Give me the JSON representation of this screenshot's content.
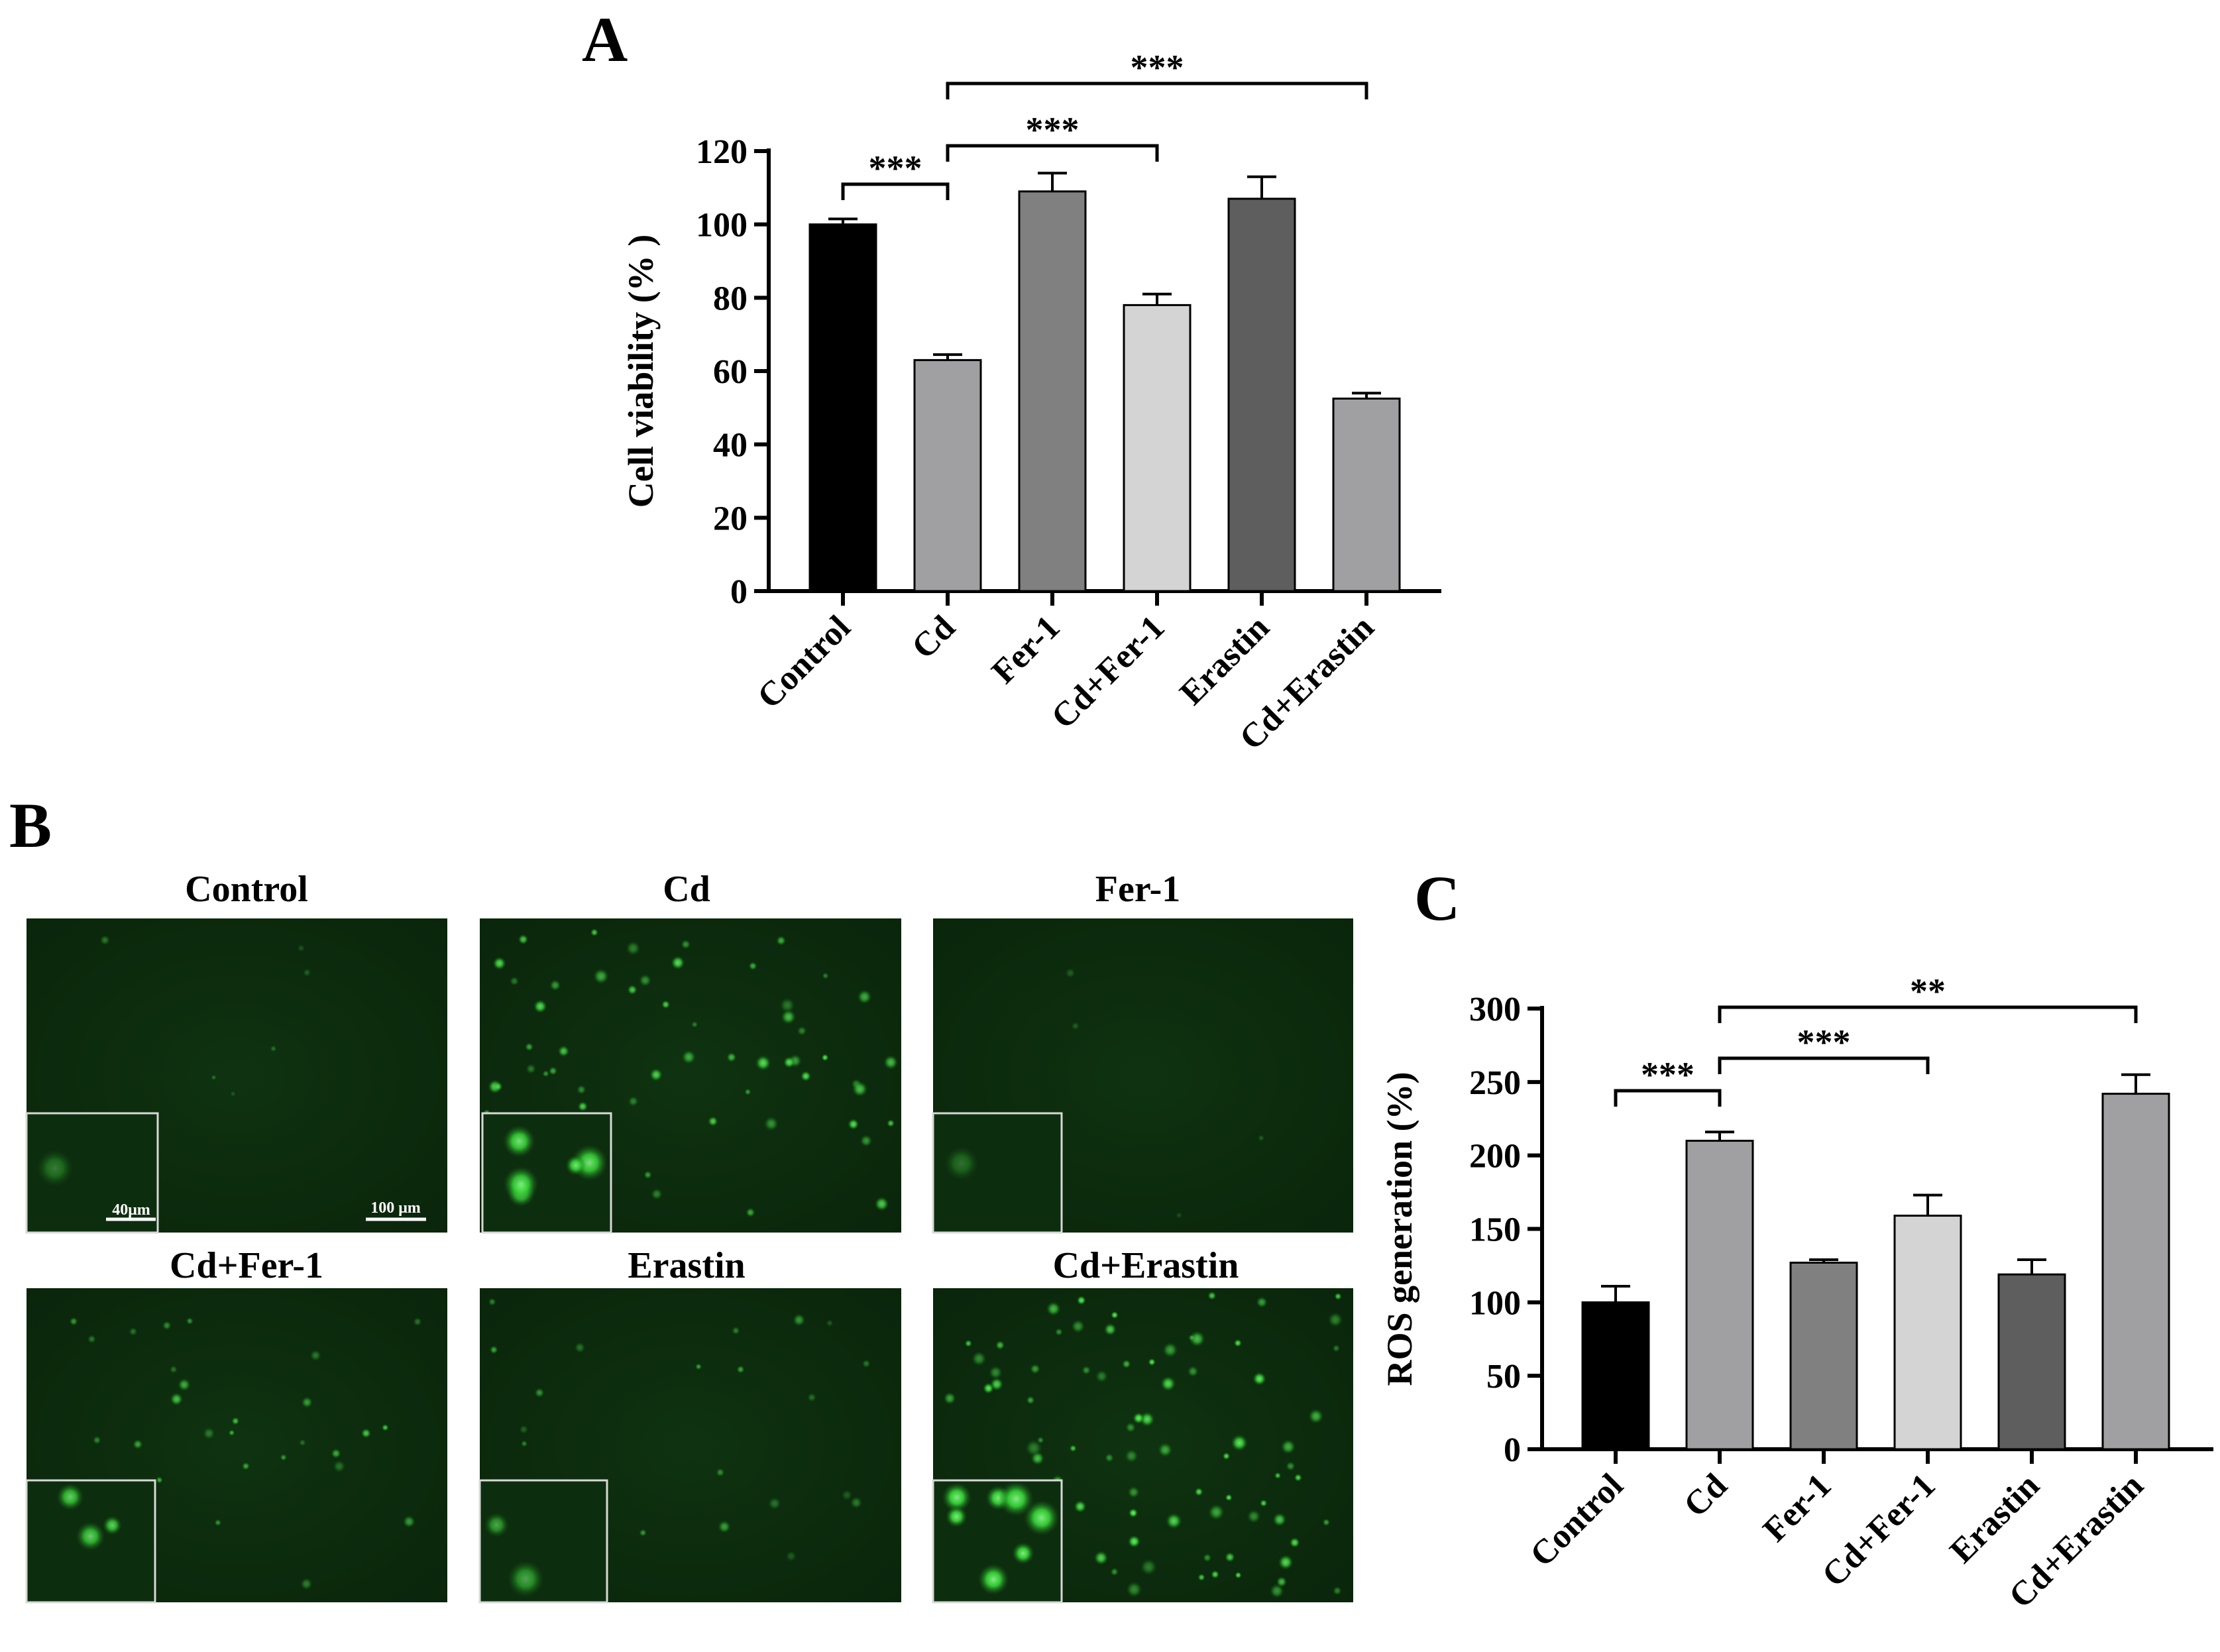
{
  "panels": {
    "a": {
      "letter": "A"
    },
    "b": {
      "letter": "B"
    },
    "c": {
      "letter": "C"
    }
  },
  "chart_data": [
    {
      "type": "bar",
      "panel": "A",
      "title": "",
      "ylabel": "Cell viability (% )",
      "xlabel": "",
      "categories": [
        "Control",
        "Cd",
        "Fer-1",
        "Cd+Fer-1",
        "Erastin",
        "Cd+Erastin"
      ],
      "values": [
        100,
        63,
        109,
        78,
        107,
        52.5
      ],
      "errors": [
        1.5,
        1.5,
        5,
        3,
        6,
        1.5
      ],
      "colors": [
        "#000000",
        "#a0a0a2",
        "#808080",
        "#d4d4d4",
        "#5e5e5e",
        "#a0a0a2"
      ],
      "ylim": [
        0,
        120
      ],
      "yticks": [
        0,
        20,
        40,
        60,
        80,
        100,
        120
      ],
      "significance": [
        {
          "from": 0,
          "to": 1,
          "label": "***"
        },
        {
          "from": 1,
          "to": 3,
          "label": "***"
        },
        {
          "from": 1,
          "to": 5,
          "label": "***"
        }
      ]
    },
    {
      "type": "bar",
      "panel": "C",
      "title": "",
      "ylabel": "ROS generation (%)",
      "xlabel": "",
      "categories": [
        "Control",
        "Cd",
        "Fer-1",
        "Cd+Fer-1",
        "Erastin",
        "Cd+Erastin"
      ],
      "values": [
        100,
        210,
        127,
        159,
        119,
        242
      ],
      "errors": [
        11,
        6,
        2,
        14,
        10,
        13
      ],
      "colors": [
        "#000000",
        "#a0a0a2",
        "#808080",
        "#d4d4d4",
        "#5e5e5e",
        "#a0a0a2"
      ],
      "ylim": [
        0,
        300
      ],
      "yticks": [
        0,
        50,
        100,
        150,
        200,
        250,
        300
      ],
      "significance": [
        {
          "from": 0,
          "to": 1,
          "label": "***"
        },
        {
          "from": 1,
          "to": 3,
          "label": "***"
        },
        {
          "from": 1,
          "to": 5,
          "label": "**"
        }
      ]
    }
  ],
  "micrographs": {
    "titles": [
      "Control",
      "Cd",
      "Fer-1",
      "Cd+Fer-1",
      "Erastin",
      "Cd+Erastin"
    ],
    "inset_scale_label": "40μm",
    "main_scale_label": "100 μm",
    "fluorescence_color": "#3ddc3d",
    "background_color": "#0c2a0c"
  }
}
